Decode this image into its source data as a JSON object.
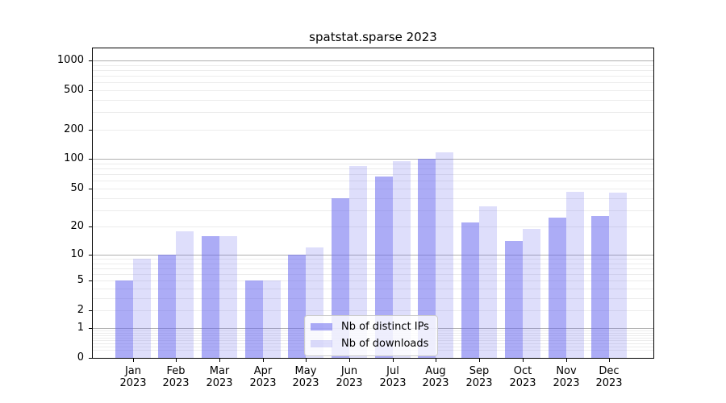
{
  "title": "spatstat.sparse 2023",
  "colors": {
    "bar_base": "#6868ee",
    "ips_fill": "rgba(104,104,238,0.55)",
    "downloads_fill": "rgba(104,104,238,0.22)",
    "major_gridline": "#b0b0b0",
    "minor_gridline": "#ececec",
    "axis": "#000000",
    "background": "#ffffff"
  },
  "chart_data": {
    "type": "bar",
    "title": "spatstat.sparse 2023",
    "categories": [
      "Jan 2023",
      "Feb 2023",
      "Mar 2023",
      "Apr 2023",
      "May 2023",
      "Jun 2023",
      "Jul 2023",
      "Aug 2023",
      "Sep 2023",
      "Oct 2023",
      "Nov 2023",
      "Dec 2023"
    ],
    "series": [
      {
        "name": "Nb of distinct IPs",
        "key": "ips",
        "values": [
          5,
          10,
          16,
          5,
          10,
          40,
          66,
          100,
          22,
          14,
          25,
          26
        ]
      },
      {
        "name": "Nb of downloads",
        "key": "dl",
        "values": [
          9,
          18,
          16,
          5,
          12,
          85,
          96,
          118,
          33,
          19,
          46,
          45
        ]
      }
    ],
    "yscale": "log10(value+1)",
    "axis_log_max": 3.121,
    "yticks": [
      0,
      1,
      2,
      5,
      10,
      20,
      50,
      100,
      200,
      500,
      1000
    ],
    "major_gridlines": [
      1,
      10,
      100,
      1000
    ],
    "minor_gridlines": [
      0.2,
      0.3,
      0.4,
      0.5,
      0.6,
      0.7,
      0.8,
      0.9,
      2,
      3,
      4,
      5,
      6,
      7,
      8,
      9,
      20,
      30,
      40,
      50,
      60,
      70,
      80,
      90,
      200,
      300,
      400,
      500,
      600,
      700,
      800,
      900
    ],
    "grid": true,
    "legend_position": "lower center",
    "legend_entries": [
      "Nb of distinct IPs",
      "Nb of downloads"
    ],
    "xlabel": "",
    "ylabel": ""
  }
}
